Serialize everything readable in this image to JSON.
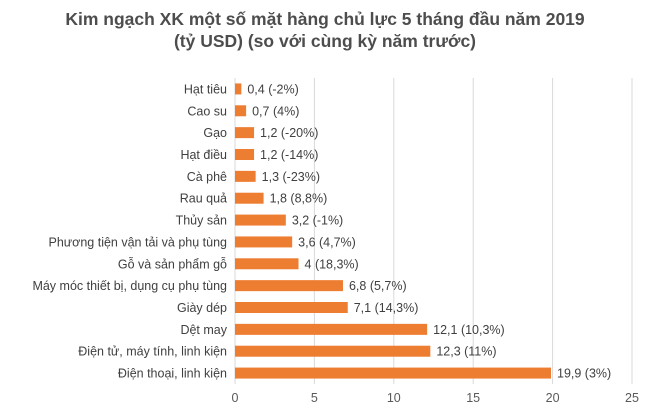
{
  "chart_data": {
    "type": "bar",
    "orientation": "horizontal",
    "title_line1": "Kim ngạch XK một số mặt hàng chủ lực 5 tháng đầu năm 2019",
    "title_line2": "(tỷ USD) (so với cùng kỳ năm trước)",
    "categories": [
      "Hạt tiêu",
      "Cao su",
      "Gạo",
      "Hạt điều",
      "Cà phê",
      "Rau quả",
      "Thủy sản",
      "Phương tiện vận tải và phụ tùng",
      "Gỗ và sản phẩm gỗ",
      "Máy móc thiết bị, dụng cụ phụ tùng",
      "Giày dép",
      "Dệt may",
      "Điện tử, máy tính, linh kiện",
      "Điện thoại, linh kiện"
    ],
    "values": [
      0.4,
      0.7,
      1.2,
      1.2,
      1.3,
      1.8,
      3.2,
      3.6,
      4,
      6.8,
      7.1,
      12.1,
      12.3,
      19.9
    ],
    "data_labels": [
      "0,4 (-2%)",
      "0,7 (4%)",
      "1,2 (-20%)",
      "1,2 (-14%)",
      "1,3 (-23%)",
      "1,8 (8,8%)",
      "3,2 (-1%)",
      "3,6 (4,7%)",
      "4 (18,3%)",
      "6,8 (5,7%)",
      "7,1 (14,3%)",
      "12,1 (10,3%)",
      "12,3 (11%)",
      "19,9 (3%)"
    ],
    "xlim": [
      0,
      25
    ],
    "xticks": [
      "0",
      "5",
      "10",
      "15",
      "20",
      "25"
    ],
    "xtick_values": [
      0,
      5,
      10,
      15,
      20,
      25
    ],
    "grid": true,
    "legend": "none",
    "bar_color": "#ed7d31",
    "grid_color": "#d9d9d9"
  }
}
